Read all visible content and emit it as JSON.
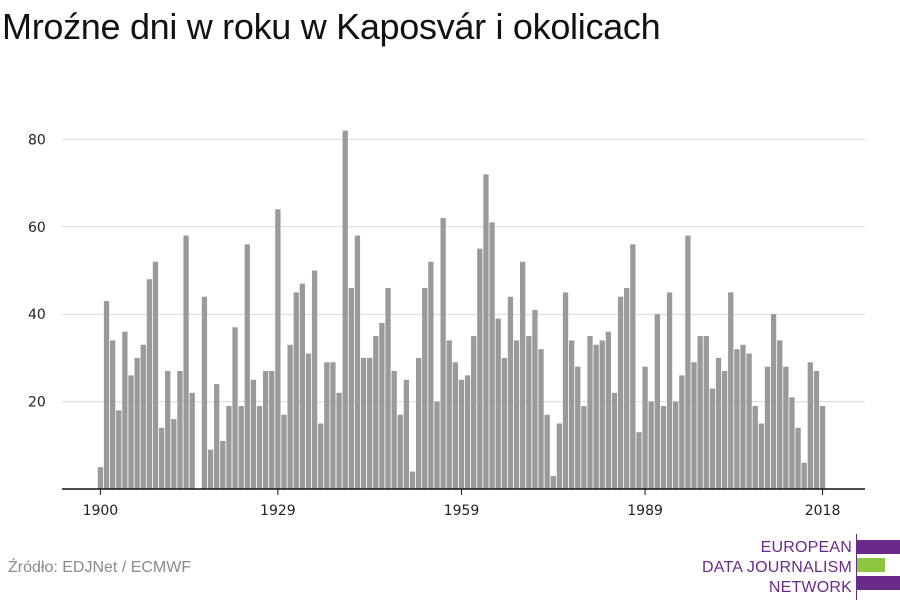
{
  "title": "Mroźne dni w roku w Kaposvár i okolicach",
  "source": "Źródło: EDJNet / ECMWF",
  "logo": {
    "line1": "EUROPEAN",
    "line2": "DATA JOURNALISM",
    "line3": "NETWORK",
    "colors": {
      "purple": "#6a2a8a",
      "green": "#8dc63f"
    }
  },
  "colors": {
    "bar": "#9a9a9a",
    "grid": "#d9d9d9",
    "axis": "#111111"
  },
  "chart_data": {
    "type": "bar",
    "title": "Mroźne dni w roku w Kaposvár i okolicach",
    "xlabel": "",
    "ylabel": "",
    "x_tick_labels": [
      "1900",
      "1929",
      "1959",
      "1989",
      "2018"
    ],
    "y_ticks": [
      20,
      40,
      60,
      80
    ],
    "ylim": [
      0,
      82
    ],
    "grid": true,
    "x": [
      1900,
      1901,
      1902,
      1903,
      1904,
      1905,
      1906,
      1907,
      1908,
      1909,
      1910,
      1911,
      1912,
      1913,
      1914,
      1915,
      1916,
      1917,
      1918,
      1919,
      1920,
      1921,
      1922,
      1923,
      1924,
      1925,
      1926,
      1927,
      1928,
      1929,
      1930,
      1931,
      1932,
      1933,
      1934,
      1935,
      1936,
      1937,
      1938,
      1939,
      1940,
      1941,
      1942,
      1943,
      1944,
      1945,
      1946,
      1947,
      1948,
      1949,
      1950,
      1951,
      1952,
      1953,
      1954,
      1955,
      1956,
      1957,
      1958,
      1959,
      1960,
      1961,
      1962,
      1963,
      1964,
      1965,
      1966,
      1967,
      1968,
      1969,
      1970,
      1971,
      1972,
      1973,
      1974,
      1975,
      1976,
      1977,
      1978,
      1979,
      1980,
      1981,
      1982,
      1983,
      1984,
      1985,
      1986,
      1987,
      1988,
      1989,
      1990,
      1991,
      1992,
      1993,
      1994,
      1995,
      1996,
      1997,
      1998,
      1999,
      2000,
      2001,
      2002,
      2003,
      2004,
      2005,
      2006,
      2007,
      2008,
      2009,
      2010,
      2011,
      2012,
      2013,
      2014,
      2015,
      2016,
      2017,
      2018
    ],
    "values": [
      5,
      43,
      34,
      18,
      36,
      26,
      30,
      33,
      48,
      52,
      14,
      27,
      16,
      27,
      58,
      22,
      0,
      44,
      9,
      24,
      11,
      19,
      37,
      19,
      56,
      25,
      19,
      27,
      27,
      64,
      17,
      33,
      45,
      47,
      31,
      50,
      15,
      29,
      29,
      22,
      82,
      46,
      58,
      30,
      30,
      35,
      38,
      46,
      27,
      17,
      25,
      4,
      30,
      46,
      52,
      20,
      62,
      34,
      29,
      25,
      26,
      35,
      55,
      72,
      61,
      39,
      30,
      44,
      34,
      52,
      35,
      41,
      32,
      17,
      3,
      15,
      45,
      34,
      28,
      19,
      35,
      33,
      34,
      36,
      22,
      44,
      46,
      56,
      13,
      28,
      20,
      40,
      19,
      45,
      20,
      26,
      58,
      29,
      35,
      35,
      23,
      30,
      27,
      45,
      32,
      33,
      31,
      19,
      15,
      28,
      40,
      34,
      28,
      21,
      14,
      6,
      29,
      27,
      19
    ]
  }
}
